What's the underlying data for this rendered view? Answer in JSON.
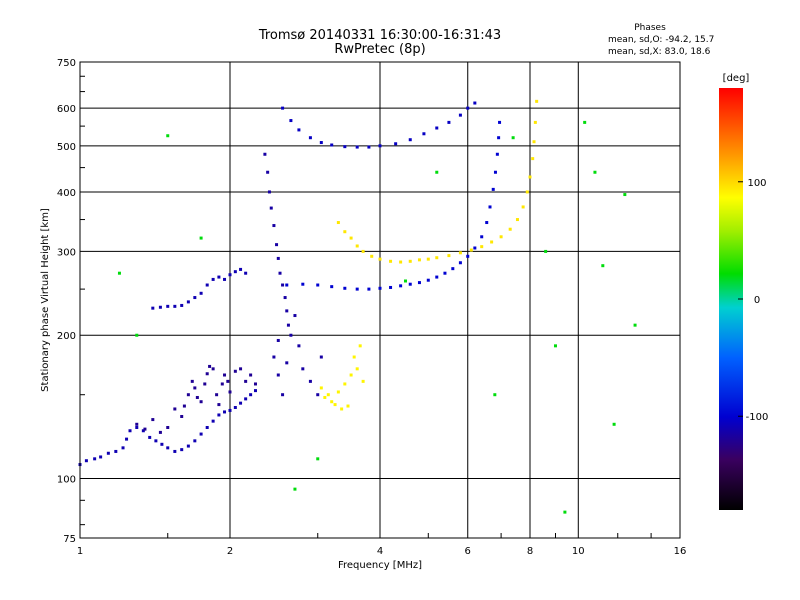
{
  "chart_data": {
    "type": "scatter",
    "title": "Tromsø 20140331 16:30:00-16:31:43",
    "subtitle": "RwPretec (8p)",
    "xlabel": "Frequency [MHz]",
    "ylabel": "Stationary phase Virtual Height [km]",
    "x_scale": "log",
    "y_scale": "log",
    "xlim": [
      1,
      16
    ],
    "ylim": [
      75,
      750
    ],
    "x_ticks": [
      1,
      2,
      4,
      6,
      8,
      10,
      16
    ],
    "x_tick_labels": [
      "1",
      "2",
      "4",
      "6",
      "8",
      "10",
      "16"
    ],
    "y_ticks": [
      75,
      100,
      200,
      300,
      400,
      500,
      600,
      750
    ],
    "y_tick_labels": [
      "75",
      "100",
      "200",
      "300",
      "400",
      "500",
      "600",
      "750"
    ],
    "grid": true,
    "stats": {
      "heading": "Phases",
      "line_o": "mean, sd,O: -94.2, 15.7",
      "line_x": "mean, sd,X: 83.0, 18.6"
    },
    "colorbar": {
      "label": "[deg]",
      "range": [
        -180,
        180
      ],
      "ticks": [
        100,
        0,
        -100
      ],
      "tick_labels": [
        "100",
        "0",
        "-100"
      ]
    },
    "color_encodes": "phase_deg",
    "series": [
      {
        "trace": "low-frequency E/F1 trace",
        "phase_deg": -110,
        "points": [
          [
            1.0,
            107
          ],
          [
            1.03,
            109
          ],
          [
            1.07,
            110
          ],
          [
            1.1,
            111
          ],
          [
            1.14,
            113
          ],
          [
            1.18,
            114
          ],
          [
            1.22,
            116
          ],
          [
            1.24,
            121
          ],
          [
            1.26,
            126
          ],
          [
            1.3,
            128
          ],
          [
            1.34,
            126
          ],
          [
            1.38,
            122
          ],
          [
            1.42,
            120
          ],
          [
            1.46,
            118
          ],
          [
            1.5,
            116
          ],
          [
            1.55,
            114
          ],
          [
            1.6,
            115
          ],
          [
            1.65,
            117
          ],
          [
            1.7,
            120
          ],
          [
            1.75,
            124
          ],
          [
            1.8,
            128
          ],
          [
            1.85,
            132
          ],
          [
            1.9,
            136
          ],
          [
            1.95,
            138
          ],
          [
            2.0,
            139
          ],
          [
            2.05,
            141
          ],
          [
            2.1,
            144
          ],
          [
            2.15,
            147
          ],
          [
            2.2,
            150
          ],
          [
            2.25,
            153
          ]
        ]
      },
      {
        "trace": "low-frequency echo cloud",
        "phase_deg": -120,
        "points": [
          [
            1.3,
            130
          ],
          [
            1.35,
            127
          ],
          [
            1.4,
            133
          ],
          [
            1.45,
            125
          ],
          [
            1.5,
            128
          ],
          [
            1.55,
            140
          ],
          [
            1.6,
            135
          ],
          [
            1.62,
            142
          ],
          [
            1.65,
            150
          ],
          [
            1.68,
            160
          ],
          [
            1.7,
            155
          ],
          [
            1.72,
            148
          ],
          [
            1.75,
            145
          ],
          [
            1.78,
            158
          ],
          [
            1.8,
            166
          ],
          [
            1.82,
            172
          ],
          [
            1.85,
            170
          ],
          [
            1.88,
            150
          ],
          [
            1.9,
            143
          ],
          [
            1.93,
            158
          ],
          [
            1.95,
            165
          ],
          [
            1.98,
            160
          ],
          [
            2.0,
            152
          ],
          [
            2.05,
            168
          ],
          [
            2.1,
            170
          ],
          [
            2.15,
            160
          ],
          [
            2.2,
            165
          ],
          [
            2.25,
            158
          ]
        ]
      },
      {
        "trace": "O-mode F2 trace",
        "phase_deg": -100,
        "points": [
          [
            2.6,
            255
          ],
          [
            2.8,
            256
          ],
          [
            3.0,
            255
          ],
          [
            3.2,
            253
          ],
          [
            3.4,
            251
          ],
          [
            3.6,
            250
          ],
          [
            3.8,
            250
          ],
          [
            4.0,
            251
          ],
          [
            4.2,
            252
          ],
          [
            4.4,
            254
          ],
          [
            4.6,
            256
          ],
          [
            4.8,
            258
          ],
          [
            5.0,
            261
          ],
          [
            5.2,
            265
          ],
          [
            5.4,
            270
          ],
          [
            5.6,
            276
          ],
          [
            5.8,
            284
          ],
          [
            6.0,
            293
          ],
          [
            6.2,
            305
          ],
          [
            6.4,
            322
          ],
          [
            6.55,
            345
          ],
          [
            6.65,
            372
          ],
          [
            6.75,
            405
          ],
          [
            6.82,
            440
          ],
          [
            6.88,
            480
          ],
          [
            6.92,
            520
          ],
          [
            6.95,
            560
          ]
        ]
      },
      {
        "trace": "X-mode F2 trace",
        "phase_deg": 95,
        "points": [
          [
            3.3,
            345
          ],
          [
            3.4,
            330
          ],
          [
            3.5,
            320
          ],
          [
            3.6,
            308
          ],
          [
            3.7,
            300
          ],
          [
            3.85,
            293
          ],
          [
            4.0,
            289
          ],
          [
            4.2,
            286
          ],
          [
            4.4,
            285
          ],
          [
            4.6,
            286
          ],
          [
            4.8,
            288
          ],
          [
            5.0,
            289
          ],
          [
            5.2,
            291
          ],
          [
            5.5,
            294
          ],
          [
            5.8,
            298
          ],
          [
            6.1,
            302
          ],
          [
            6.4,
            307
          ],
          [
            6.7,
            314
          ],
          [
            7.0,
            322
          ],
          [
            7.3,
            334
          ],
          [
            7.55,
            350
          ],
          [
            7.75,
            372
          ],
          [
            7.9,
            400
          ],
          [
            8.0,
            430
          ],
          [
            8.1,
            470
          ],
          [
            8.15,
            510
          ],
          [
            8.2,
            560
          ],
          [
            8.25,
            620
          ]
        ]
      },
      {
        "trace": "F2 multiple-hop trace",
        "phase_deg": -105,
        "points": [
          [
            2.55,
            600
          ],
          [
            2.65,
            565
          ],
          [
            2.75,
            540
          ],
          [
            2.9,
            520
          ],
          [
            3.05,
            508
          ],
          [
            3.2,
            502
          ],
          [
            3.4,
            498
          ],
          [
            3.6,
            497
          ],
          [
            3.8,
            497
          ],
          [
            4.0,
            500
          ],
          [
            4.3,
            505
          ],
          [
            4.6,
            515
          ],
          [
            4.9,
            530
          ],
          [
            5.2,
            545
          ],
          [
            5.5,
            560
          ],
          [
            5.8,
            580
          ],
          [
            6.0,
            600
          ],
          [
            6.2,
            615
          ]
        ]
      },
      {
        "trace": "F1 cusp scatter",
        "phase_deg": -115,
        "points": [
          [
            2.35,
            480
          ],
          [
            2.38,
            440
          ],
          [
            2.4,
            400
          ],
          [
            2.42,
            370
          ],
          [
            2.45,
            340
          ],
          [
            2.48,
            310
          ],
          [
            2.5,
            290
          ],
          [
            2.52,
            270
          ],
          [
            2.55,
            255
          ],
          [
            2.58,
            240
          ],
          [
            2.6,
            225
          ],
          [
            2.62,
            210
          ],
          [
            2.5,
            195
          ],
          [
            2.45,
            180
          ],
          [
            2.5,
            165
          ],
          [
            2.55,
            150
          ],
          [
            2.6,
            175
          ],
          [
            2.65,
            200
          ],
          [
            2.7,
            220
          ],
          [
            2.75,
            190
          ],
          [
            2.8,
            170
          ],
          [
            2.9,
            160
          ],
          [
            3.0,
            150
          ],
          [
            3.05,
            180
          ]
        ]
      },
      {
        "trace": "X-mode low-frequency cloud",
        "phase_deg": 90,
        "points": [
          [
            3.1,
            148
          ],
          [
            3.2,
            145
          ],
          [
            3.3,
            152
          ],
          [
            3.4,
            158
          ],
          [
            3.5,
            165
          ],
          [
            3.55,
            180
          ],
          [
            3.6,
            170
          ],
          [
            3.65,
            190
          ],
          [
            3.7,
            160
          ],
          [
            3.45,
            142
          ],
          [
            3.35,
            140
          ],
          [
            3.25,
            143
          ],
          [
            3.15,
            150
          ],
          [
            3.05,
            155
          ]
        ]
      },
      {
        "trace": "low-frequency ledge",
        "phase_deg": -110,
        "points": [
          [
            1.4,
            228
          ],
          [
            1.45,
            229
          ],
          [
            1.5,
            230
          ],
          [
            1.55,
            230
          ],
          [
            1.6,
            231
          ],
          [
            1.65,
            235
          ],
          [
            1.7,
            240
          ],
          [
            1.75,
            245
          ],
          [
            1.8,
            255
          ],
          [
            1.85,
            262
          ],
          [
            1.9,
            265
          ],
          [
            1.95,
            262
          ],
          [
            2.0,
            268
          ],
          [
            2.05,
            272
          ],
          [
            2.1,
            275
          ],
          [
            2.15,
            270
          ]
        ]
      },
      {
        "trace": "isolated points",
        "phase_deg": 20,
        "points": [
          [
            1.2,
            270
          ],
          [
            1.3,
            200
          ],
          [
            1.5,
            525
          ],
          [
            1.75,
            320
          ],
          [
            2.7,
            95
          ],
          [
            3.0,
            110
          ],
          [
            4.5,
            260
          ],
          [
            5.2,
            440
          ],
          [
            6.8,
            150
          ],
          [
            7.4,
            520
          ],
          [
            8.6,
            300
          ],
          [
            9.0,
            190
          ],
          [
            9.4,
            85
          ],
          [
            10.3,
            560
          ],
          [
            10.8,
            440
          ],
          [
            11.2,
            280
          ],
          [
            11.8,
            130
          ],
          [
            12.4,
            395
          ],
          [
            13.0,
            210
          ]
        ]
      }
    ]
  }
}
